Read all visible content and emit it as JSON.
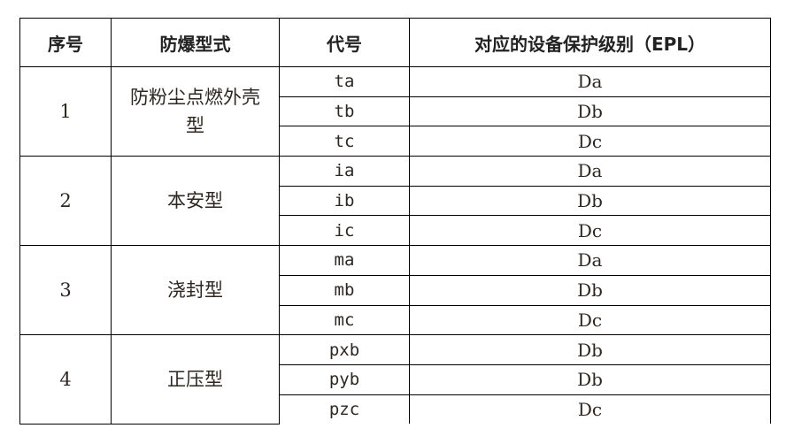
{
  "headers": [
    "序号",
    "防爆型式",
    "代号",
    "对应的设备保护级别（EPL）"
  ],
  "groups": [
    {
      "no": "1",
      "type": "防粉尘点燃外壳型",
      "rows": [
        {
          "code": "ta",
          "epl": "Da"
        },
        {
          "code": "tb",
          "epl": "Db"
        },
        {
          "code": "tc",
          "epl": "Dc"
        }
      ]
    },
    {
      "no": "2",
      "type": "本安型",
      "rows": [
        {
          "code": "ia",
          "epl": "Da"
        },
        {
          "code": "ib",
          "epl": "Db"
        },
        {
          "code": "ic",
          "epl": "Dc"
        }
      ]
    },
    {
      "no": "3",
      "type": "浇封型",
      "rows": [
        {
          "code": "ma",
          "epl": "Da"
        },
        {
          "code": "mb",
          "epl": "Db"
        },
        {
          "code": "mc",
          "epl": "Dc"
        }
      ]
    },
    {
      "no": "4",
      "type": "正压型",
      "rows": [
        {
          "code": "pxb",
          "epl": "Db"
        },
        {
          "code": "pyb",
          "epl": "Db"
        },
        {
          "code": "pzc",
          "epl": "Dc"
        }
      ]
    }
  ]
}
